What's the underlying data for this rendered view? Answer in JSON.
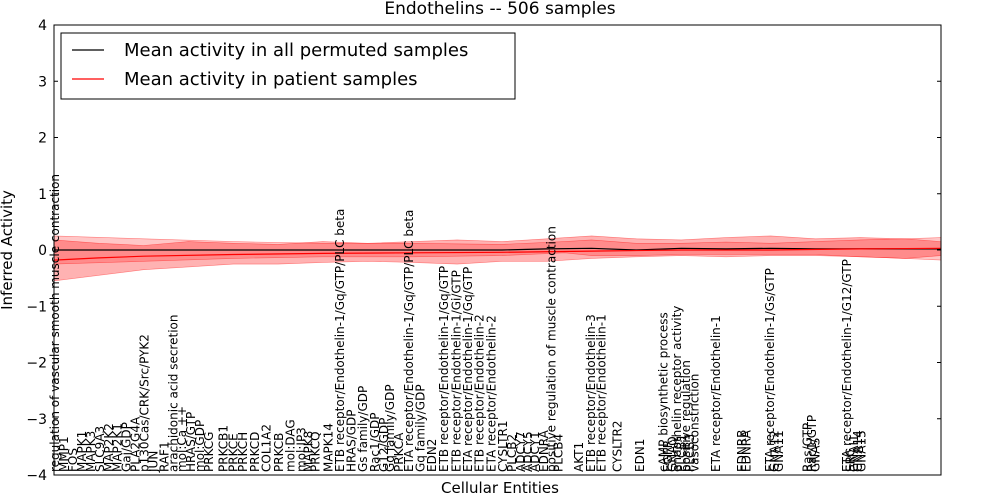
{
  "chart_data": {
    "type": "line",
    "title": "Endothelins -- 506 samples",
    "xlabel": "Cellular Entities",
    "ylabel": "Inferred Activity",
    "ylim": [
      -4,
      4
    ],
    "yticks": [
      -4,
      -3,
      -2,
      -1,
      0,
      1,
      2,
      3,
      4
    ],
    "ytick_labels": [
      "−4",
      "−3",
      "−2",
      "−1",
      "0",
      "1",
      "2",
      "3",
      "4"
    ],
    "grid": false,
    "legend_position": "top-left",
    "n_entities": 100,
    "series": [
      {
        "name": "Mean activity in all permuted samples",
        "color": "#000000",
        "points": [
          [
            0,
            0.0
          ],
          [
            10,
            0.0
          ],
          [
            20,
            0.0
          ],
          [
            30,
            0.0
          ],
          [
            40,
            0.0
          ],
          [
            50,
            0.0
          ],
          [
            55,
            0.02
          ],
          [
            60,
            0.03
          ],
          [
            65,
            0.0
          ],
          [
            70,
            0.03
          ],
          [
            75,
            0.02
          ],
          [
            80,
            0.03
          ],
          [
            85,
            0.02
          ],
          [
            90,
            0.02
          ],
          [
            95,
            0.02
          ],
          [
            99,
            0.02
          ]
        ],
        "band": [
          [
            0,
            0.25,
            -0.25
          ],
          [
            10,
            0.2,
            -0.2
          ],
          [
            20,
            0.15,
            -0.15
          ],
          [
            30,
            0.12,
            -0.12
          ],
          [
            40,
            0.12,
            -0.12
          ],
          [
            50,
            0.1,
            -0.1
          ],
          [
            57,
            0.15,
            -0.05
          ],
          [
            60,
            0.18,
            -0.1
          ],
          [
            65,
            0.12,
            -0.1
          ],
          [
            70,
            0.12,
            -0.08
          ],
          [
            75,
            0.14,
            -0.08
          ],
          [
            80,
            0.12,
            -0.08
          ],
          [
            85,
            0.15,
            -0.08
          ],
          [
            90,
            0.18,
            -0.12
          ],
          [
            95,
            0.2,
            -0.15
          ],
          [
            99,
            0.22,
            -0.18
          ]
        ]
      },
      {
        "name": "Mean activity in patient samples",
        "color": "#ff0000",
        "points": [
          [
            0,
            -0.18
          ],
          [
            5,
            -0.14
          ],
          [
            10,
            -0.11
          ],
          [
            20,
            -0.08
          ],
          [
            30,
            -0.06
          ],
          [
            40,
            -0.05
          ],
          [
            50,
            -0.04
          ],
          [
            60,
            -0.02
          ],
          [
            70,
            0.0
          ],
          [
            80,
            0.0
          ],
          [
            90,
            0.02
          ],
          [
            99,
            0.03
          ]
        ],
        "band": [
          [
            0,
            0.18,
            -0.55
          ],
          [
            5,
            0.12,
            -0.45
          ],
          [
            10,
            0.08,
            -0.35
          ],
          [
            15,
            0.15,
            -0.3
          ],
          [
            20,
            0.12,
            -0.25
          ],
          [
            25,
            0.1,
            -0.25
          ],
          [
            30,
            0.15,
            -0.22
          ],
          [
            35,
            0.12,
            -0.2
          ],
          [
            40,
            0.15,
            -0.22
          ],
          [
            45,
            0.18,
            -0.25
          ],
          [
            50,
            0.15,
            -0.2
          ],
          [
            55,
            0.2,
            -0.2
          ],
          [
            60,
            0.25,
            -0.15
          ],
          [
            65,
            0.2,
            -0.12
          ],
          [
            70,
            0.18,
            -0.1
          ],
          [
            75,
            0.22,
            -0.12
          ],
          [
            80,
            0.25,
            -0.1
          ],
          [
            85,
            0.2,
            -0.1
          ],
          [
            90,
            0.22,
            -0.12
          ],
          [
            95,
            0.2,
            -0.15
          ],
          [
            99,
            0.15,
            -0.1
          ]
        ]
      }
    ],
    "x_labels": [
      {
        "i": 0,
        "text": "regulation of vascular smooth muscle contraction"
      },
      {
        "i": 1,
        "text": "MMP1"
      },
      {
        "i": 2,
        "text": "FOS"
      },
      {
        "i": 3,
        "text": "MAPK1"
      },
      {
        "i": 4,
        "text": "MAPK3"
      },
      {
        "i": 5,
        "text": "SLC9A3"
      },
      {
        "i": 6,
        "text": "MAP2K2"
      },
      {
        "i": 7,
        "text": "MAP2K1"
      },
      {
        "i": 8,
        "text": "Gai/GDP"
      },
      {
        "i": 9,
        "text": "PLA2G4A"
      },
      {
        "i": 10,
        "text": "p130Cas/CRK/Src/PYK2"
      },
      {
        "i": 11,
        "text": "JUN"
      },
      {
        "i": 12.2,
        "text": "RAF1"
      },
      {
        "i": 13.2,
        "text": "arachidonic acid secretion"
      },
      {
        "i": 14.2,
        "text": "mol:Ca ++"
      },
      {
        "i": 15.2,
        "text": "HRAS/GTP"
      },
      {
        "i": 16.2,
        "text": "mol:GDP"
      },
      {
        "i": 17.2,
        "text": "PRKCG"
      },
      {
        "i": 18.8,
        "text": "PRKCB1"
      },
      {
        "i": 19.9,
        "text": "PRKCE"
      },
      {
        "i": 21.0,
        "text": "PRKCH"
      },
      {
        "i": 22.3,
        "text": "PRKCD"
      },
      {
        "i": 23.6,
        "text": "COL1A2"
      },
      {
        "i": 25.0,
        "text": "PRKCB"
      },
      {
        "i": 26.3,
        "text": "mol:DAG"
      },
      {
        "i": 27.5,
        "text": "mol:IP3"
      },
      {
        "i": 28.3,
        "text": "MAPK8"
      },
      {
        "i": 29.1,
        "text": "PRKCQ"
      },
      {
        "i": 30.5,
        "text": "MAPK14"
      },
      {
        "i": 31.8,
        "text": "ETB receptor/Endothelin-1/Gq/GTP/PLC beta"
      },
      {
        "i": 33.1,
        "text": "HRAS/GDP"
      },
      {
        "i": 34.4,
        "text": "Gs family/GDP"
      },
      {
        "i": 35.7,
        "text": "Rac1/GDP"
      },
      {
        "i": 36.7,
        "text": "G12/GDP"
      },
      {
        "i": 37.4,
        "text": "Gq family/GDP"
      },
      {
        "i": 38.4,
        "text": "PRKCA"
      },
      {
        "i": 39.5,
        "text": "ETA receptor/Endothelin-1/Gq/GTP/PLC beta"
      },
      {
        "i": 40.8,
        "text": "Gq family/GDP"
      },
      {
        "i": 42.1,
        "text": "EDN2"
      },
      {
        "i": 43.4,
        "text": "ETB receptor/Endothelin-1/Gq/GTP"
      },
      {
        "i": 44.8,
        "text": "ETB receptor/Endothelin-1/Gi/GTP"
      },
      {
        "i": 46.1,
        "text": "ETA receptor/Endothelin-1/Gq/GTP"
      },
      {
        "i": 47.4,
        "text": "ETB receptor/Endothelin-2"
      },
      {
        "i": 48.7,
        "text": "ETA receptor/Endothelin-2"
      },
      {
        "i": 50.0,
        "text": "CYSLTR1"
      },
      {
        "i": 51.0,
        "text": "PLCB2"
      },
      {
        "i": 52.0,
        "text": "ADCY7"
      },
      {
        "i": 52.8,
        "text": "ADCY5"
      },
      {
        "i": 53.6,
        "text": "ADCY1"
      },
      {
        "i": 54.6,
        "text": "EDNRA"
      },
      {
        "i": 55.4,
        "text": "positive regulation of muscle contraction"
      },
      {
        "i": 56.2,
        "text": "PLCB4"
      },
      {
        "i": 58.5,
        "text": "AKT1"
      },
      {
        "i": 59.8,
        "text": "ETB receptor/Endothelin-3"
      },
      {
        "i": 61.0,
        "text": "ETB receptor/Endothelin-1"
      },
      {
        "i": 62.8,
        "text": "CYSLTR2"
      },
      {
        "i": 65.3,
        "text": "EDN1"
      },
      {
        "i": 67.9,
        "text": "cAMP biosynthetic process"
      },
      {
        "i": 68.4,
        "text": "EGFR"
      },
      {
        "i": 68.9,
        "text": "GNAQ"
      },
      {
        "i": 69.4,
        "text": "endothelin receptor activity"
      },
      {
        "i": 69.9,
        "text": "PLCB1"
      },
      {
        "i": 70.4,
        "text": "positive regulation"
      },
      {
        "i": 70.9,
        "text": "PLCB3"
      },
      {
        "i": 71.4,
        "text": "vasoconstriction"
      },
      {
        "i": 73.8,
        "text": "ETA receptor/Endothelin-1"
      },
      {
        "i": 76.7,
        "text": "EDNRB"
      },
      {
        "i": 77.2,
        "text": "EDNRA"
      },
      {
        "i": 79.8,
        "text": "ETA receptor/Endothelin-1/Gs/GTP"
      },
      {
        "i": 80.3,
        "text": "GNA12"
      },
      {
        "i": 80.8,
        "text": "GNA11"
      },
      {
        "i": 84.0,
        "text": "Ras/GTP"
      },
      {
        "i": 84.5,
        "text": "Rac1/GTP"
      },
      {
        "i": 84.9,
        "text": "GNAS"
      },
      {
        "i": 88.4,
        "text": "ETA receptor/Endothelin-1/G12/GTP"
      },
      {
        "i": 88.8,
        "text": "SRC"
      },
      {
        "i": 89.2,
        "text": "GNAI1"
      },
      {
        "i": 89.6,
        "text": "GNA14"
      },
      {
        "i": 90.0,
        "text": "GNA15"
      }
    ]
  }
}
